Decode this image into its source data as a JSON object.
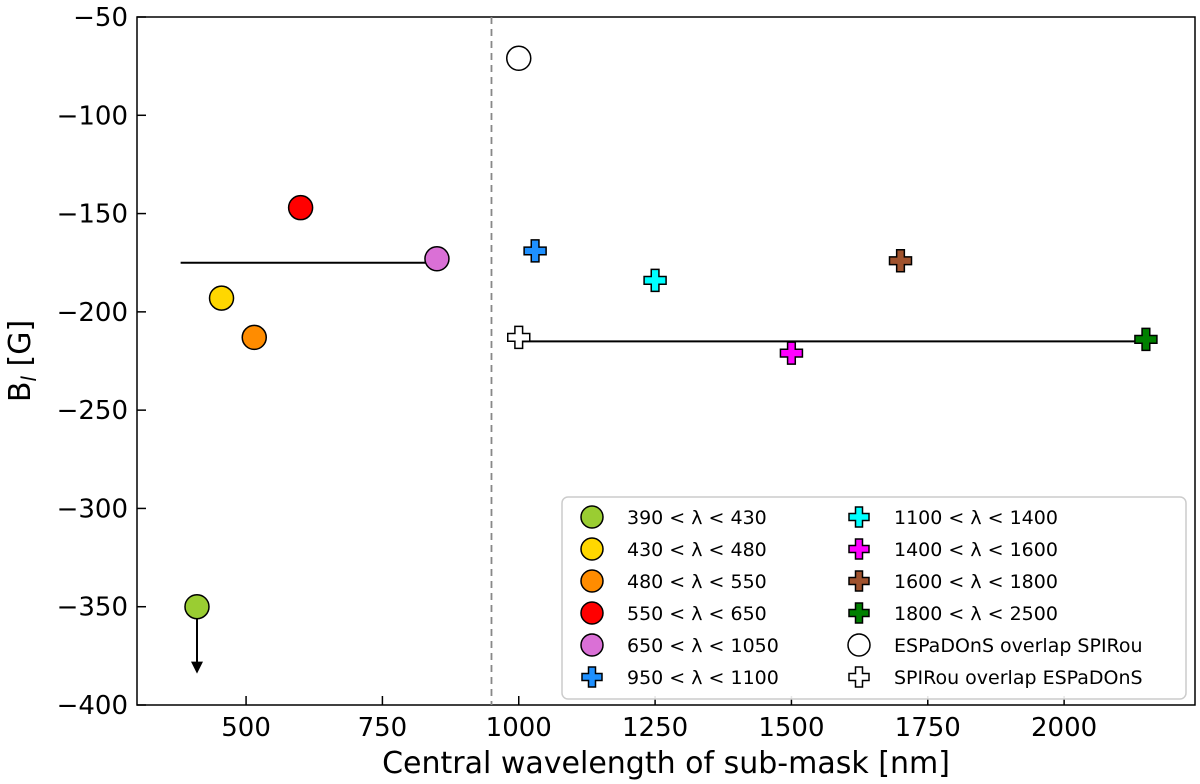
{
  "chart_data": {
    "type": "scatter",
    "xlabel": "Central wavelength of sub-mask [nm]",
    "ylabel_main": "B",
    "ylabel_sub": "l",
    "ylabel_rest": " [G]",
    "xlim": [
      300,
      2240
    ],
    "ylim": [
      -400,
      -50
    ],
    "x_ticks": [
      500,
      750,
      1000,
      1250,
      1500,
      1750,
      2000
    ],
    "x_tick_labels": [
      "500",
      "750",
      "1000",
      "1250",
      "1500",
      "1750",
      "2000"
    ],
    "y_ticks": [
      -50,
      -100,
      -150,
      -200,
      -250,
      -300,
      -350,
      -400
    ],
    "y_tick_labels": [
      "−50",
      "−100",
      "−150",
      "−200",
      "−250",
      "−300",
      "−350",
      "−400"
    ],
    "vline_x": 950,
    "hlines": [
      {
        "x": [
          380,
          855
        ],
        "y": -175
      },
      {
        "x": [
          1000,
          2150
        ],
        "y": -215
      }
    ],
    "legend_position": "lower-right",
    "series": [
      {
        "name": "390 < λ < 430",
        "marker": "circle",
        "color": "#9acd32",
        "x": 410,
        "y": -350,
        "arrow_to": -383
      },
      {
        "name": "430 < λ < 480",
        "marker": "circle",
        "color": "#ffd700",
        "x": 455,
        "y": -193
      },
      {
        "name": "480 < λ < 550",
        "marker": "circle",
        "color": "#ff8c00",
        "x": 515,
        "y": -213
      },
      {
        "name": "550 < λ < 650",
        "marker": "circle",
        "color": "#ff0000",
        "x": 600,
        "y": -147
      },
      {
        "name": "650 < λ < 1050",
        "marker": "circle",
        "color": "#da70d6",
        "x": 850,
        "y": -173
      },
      {
        "name": "950 < λ < 1100",
        "marker": "plus",
        "color": "#1e90ff",
        "x": 1030,
        "y": -169
      },
      {
        "name": "1100 < λ < 1400",
        "marker": "plus",
        "color": "#00ffff",
        "x": 1250,
        "y": -184
      },
      {
        "name": "1400 < λ < 1600",
        "marker": "plus",
        "color": "#ff00ff",
        "x": 1500,
        "y": -221
      },
      {
        "name": "1600 < λ < 1800",
        "marker": "plus",
        "color": "#a0522d",
        "x": 1700,
        "y": -174
      },
      {
        "name": "1800 < λ < 2500",
        "marker": "plus",
        "color": "#008000",
        "x": 2150,
        "y": -214
      },
      {
        "name": "ESPaDOnS overlap SPIRou",
        "marker": "circle",
        "color": "#ffffff",
        "x": 1000,
        "y": -71,
        "err": 5
      },
      {
        "name": "SPIRou overlap ESPaDOnS",
        "marker": "plus",
        "color": "#ffffff",
        "x": 1000,
        "y": -213
      }
    ]
  }
}
